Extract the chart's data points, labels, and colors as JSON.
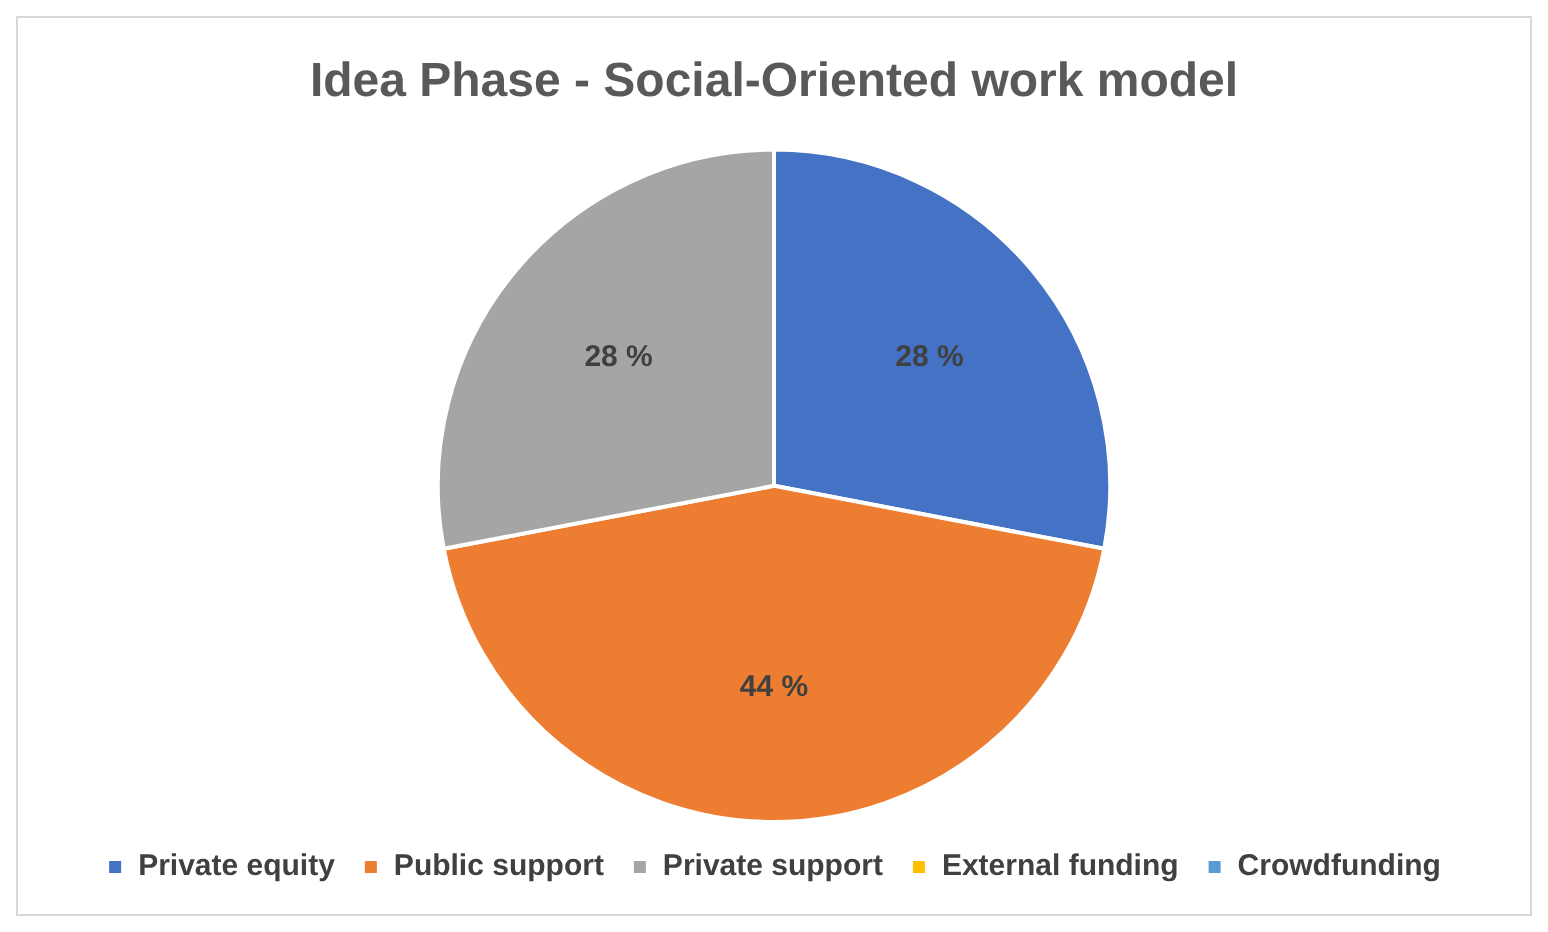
{
  "chart_data": {
    "type": "pie",
    "title": "Idea Phase - Social-Oriented work model",
    "categories": [
      "Private equity",
      "Public support",
      "Private support",
      "External funding",
      "Crowdfunding"
    ],
    "values": [
      28,
      44,
      28,
      0,
      0
    ],
    "colors": [
      "#4472c4",
      "#ed7d31",
      "#a5a5a5",
      "#ffc000",
      "#5b9bd5"
    ],
    "value_labels": [
      "28 %",
      "44 %",
      "28 %",
      null,
      null
    ],
    "legend": "bottom"
  }
}
